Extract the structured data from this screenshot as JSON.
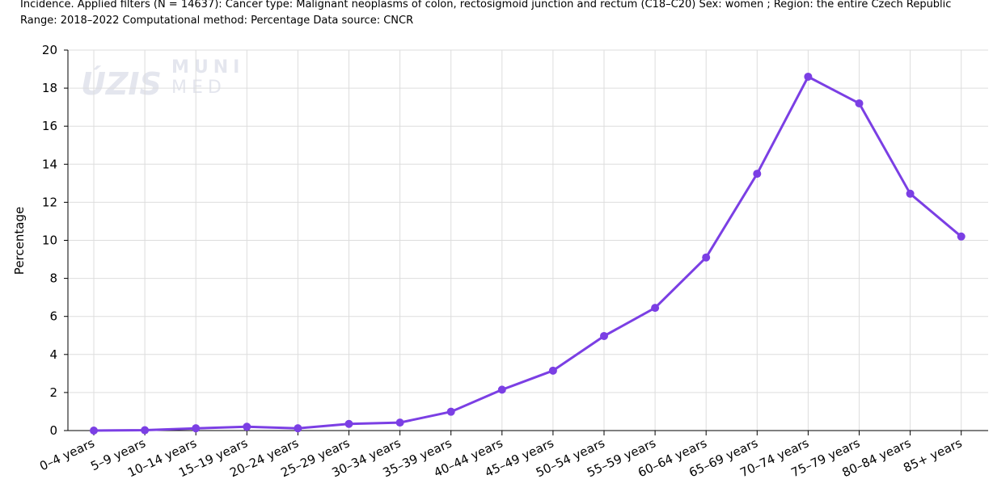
{
  "caption": {
    "line1": "Incidence. Applied filters (N = 14637): Cancer type: Malignant neoplasms of colon, rectosigmoid junction and rectum (C18–C20) Sex: women ; Region: the entire Czech Republic",
    "line2": "Range: 2018–2022 Computational method: Percentage Data source: CNCR"
  },
  "watermark": {
    "uzis": "ÚZIS",
    "muni": "MUNI",
    "med": "MED"
  },
  "colors": {
    "series": "#7b3fe4",
    "grid": "#dddddd",
    "axis": "#000000"
  },
  "chart_data": {
    "type": "line",
    "title": "",
    "xlabel": "",
    "ylabel": "Percentage",
    "ylim": [
      0,
      20
    ],
    "yticks": [
      0,
      2,
      4,
      6,
      8,
      10,
      12,
      14,
      16,
      18,
      20
    ],
    "grid": true,
    "legend": "none",
    "categories": [
      "0–4 years",
      "5–9 years",
      "10–14 years",
      "15–19 years",
      "20–24 years",
      "25–29 years",
      "30–34 years",
      "35–39 years",
      "40–44 years",
      "45–49 years",
      "50–54 years",
      "55–59 years",
      "60–64 years",
      "65–69 years",
      "70–74 years",
      "75–79 years",
      "80–84 years",
      "85+ years"
    ],
    "series": [
      {
        "values": [
          0.0,
          0.02,
          0.12,
          0.2,
          0.12,
          0.35,
          0.42,
          0.99,
          2.15,
          3.15,
          4.97,
          6.45,
          9.1,
          13.5,
          18.6,
          17.2,
          12.45,
          10.2
        ]
      }
    ]
  }
}
